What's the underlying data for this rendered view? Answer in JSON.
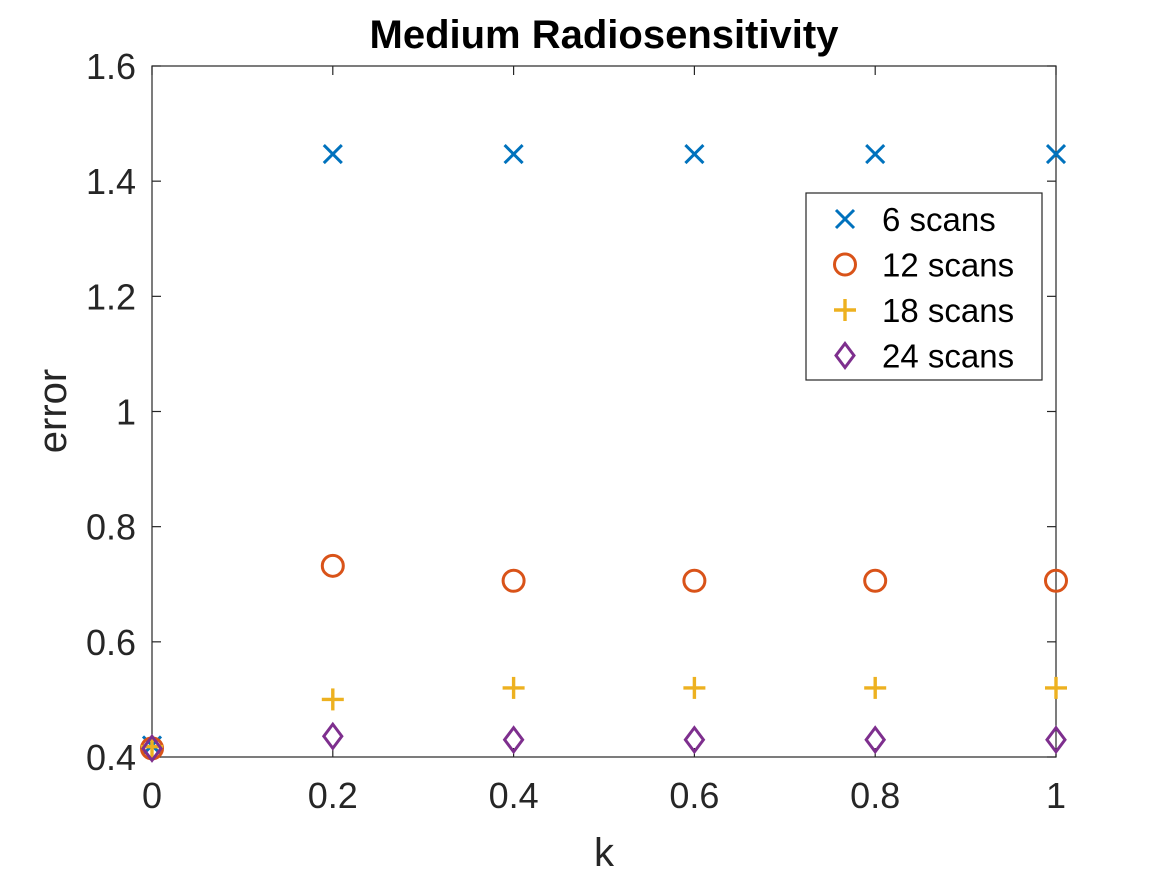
{
  "chart_data": {
    "type": "scatter",
    "title": "Medium Radiosensitivity",
    "xlabel": "k",
    "ylabel": "error",
    "xlim": [
      0,
      1
    ],
    "ylim": [
      0.4,
      1.6
    ],
    "xticks": [
      0,
      0.2,
      0.4,
      0.6,
      0.8,
      1
    ],
    "xtick_labels": [
      "0",
      "0.2",
      "0.4",
      "0.6",
      "0.8",
      "1"
    ],
    "yticks": [
      0.4,
      0.6,
      0.8,
      1.0,
      1.2,
      1.4,
      1.6
    ],
    "ytick_labels": [
      "0.4",
      "0.6",
      "0.8",
      "1",
      "1.2",
      "1.4",
      "1.6"
    ],
    "grid": false,
    "legend_position": "top-right",
    "x": [
      0,
      0.2,
      0.4,
      0.6,
      0.8,
      1
    ],
    "series": [
      {
        "name": "6 scans",
        "marker": "x",
        "color": "#0072BD",
        "values": [
          0.42,
          1.447,
          1.447,
          1.447,
          1.447,
          1.447
        ]
      },
      {
        "name": "12 scans",
        "marker": "circle",
        "color": "#D95319",
        "values": [
          0.415,
          0.732,
          0.706,
          0.706,
          0.706,
          0.706
        ]
      },
      {
        "name": "18 scans",
        "marker": "plus",
        "color": "#EDB120",
        "values": [
          0.418,
          0.5,
          0.52,
          0.52,
          0.52,
          0.52
        ]
      },
      {
        "name": "24 scans",
        "marker": "diamond",
        "color": "#7E2F8E",
        "values": [
          0.415,
          0.436,
          0.43,
          0.43,
          0.43,
          0.43
        ]
      }
    ]
  }
}
